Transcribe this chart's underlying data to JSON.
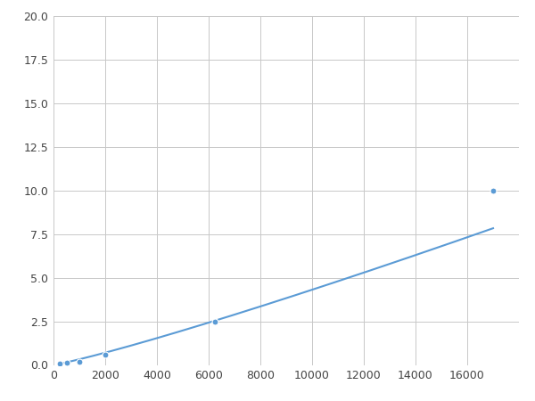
{
  "x": [
    250,
    500,
    1000,
    2000,
    6250,
    17000
  ],
  "y": [
    0.1,
    0.15,
    0.2,
    0.6,
    2.5,
    10.0
  ],
  "line_color": "#5b9bd5",
  "marker_color": "#5b9bd5",
  "marker_size": 5,
  "linewidth": 1.5,
  "xlim": [
    0,
    18000
  ],
  "ylim": [
    0,
    20.0
  ],
  "xticks": [
    0,
    2000,
    4000,
    6000,
    8000,
    10000,
    12000,
    14000,
    16000
  ],
  "yticks": [
    0.0,
    2.5,
    5.0,
    7.5,
    10.0,
    12.5,
    15.0,
    17.5,
    20.0
  ],
  "grid_color": "#c8c8c8",
  "background_color": "#ffffff",
  "figure_facecolor": "#ffffff"
}
